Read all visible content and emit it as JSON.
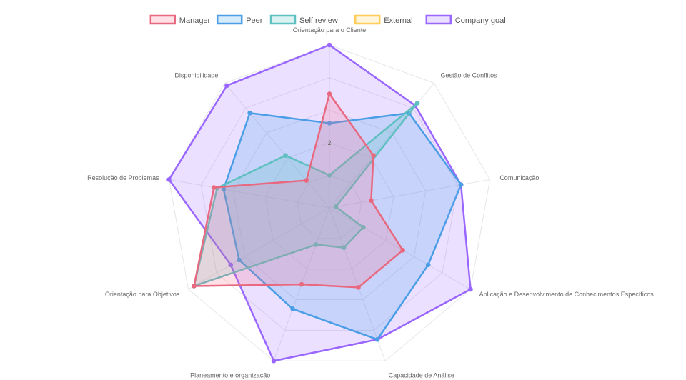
{
  "chart_data": {
    "type": "radar",
    "title": "",
    "scale": {
      "min": 0,
      "max": 5,
      "step": 1,
      "visible_tick_labels": [
        "2"
      ]
    },
    "grid": true,
    "legend_position": "top",
    "axes": [
      "Orientação para o Cliente",
      "Gestão de Conflitos",
      "Comunicação",
      "Aplicação e Desenvolvimento de Conhecimentos Específicos",
      "Capacidade de Análise",
      "Planeamento e organização",
      "Orientação para Objetivos",
      "Resolução de Problemas",
      "Disponibilidade"
    ],
    "series": [
      {
        "name": "Company goal",
        "color": "#9966ff",
        "fill": "rgba(153,102,255,0.2)",
        "values": [
          5,
          4.1,
          4.1,
          5,
          4.3,
          5,
          3.5,
          5,
          4.9
        ]
      },
      {
        "name": "Peer",
        "color": "#4a9ee6",
        "fill": "rgba(54,162,235,0.2)",
        "values": [
          2.6,
          3.8,
          4.1,
          3.5,
          4.3,
          3.3,
          3.2,
          3.3,
          3.8
        ]
      },
      {
        "name": "Self review",
        "color": "#5fc0c0",
        "fill": "rgba(75,192,192,0.2)",
        "values": [
          1,
          4.2,
          0.2,
          1.2,
          1.3,
          1.2,
          4.8,
          3.5,
          2.1
        ]
      },
      {
        "name": "Manager",
        "color": "#e8697f",
        "fill": "rgba(255,99,132,0.2)",
        "values": [
          3.5,
          2.1,
          1.3,
          2.6,
          2.6,
          2.5,
          4.8,
          3.6,
          1.1
        ]
      },
      {
        "name": "External",
        "color": "#ffcd56",
        "fill": "rgba(255,205,86,0.2)",
        "values": []
      }
    ],
    "legend": [
      {
        "name": "Manager",
        "color": "#e8697f",
        "fill": "rgba(255,99,132,0.2)"
      },
      {
        "name": "Peer",
        "color": "#4a9ee6",
        "fill": "rgba(54,162,235,0.2)"
      },
      {
        "name": "Self review",
        "color": "#5fc0c0",
        "fill": "rgba(75,192,192,0.2)"
      },
      {
        "name": "External",
        "color": "#ffcd56",
        "fill": "rgba(255,205,86,0.2)"
      },
      {
        "name": "Company goal",
        "color": "#9966ff",
        "fill": "rgba(153,102,255,0.2)"
      }
    ]
  }
}
